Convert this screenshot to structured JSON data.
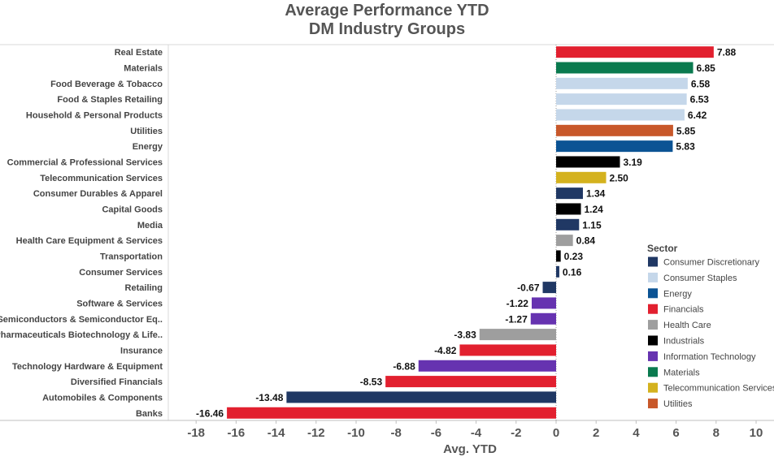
{
  "chart_data": {
    "type": "bar",
    "orientation": "horizontal",
    "title": "Average Performance YTD",
    "subtitle": "DM Industry Groups",
    "xlabel": "Avg. YTD",
    "ylabel": "",
    "xlim": [
      -19,
      10.5
    ],
    "x_ticks": [
      -18,
      -16,
      -14,
      -12,
      -10,
      -8,
      -6,
      -4,
      -2,
      0,
      2,
      4,
      6,
      8,
      10
    ],
    "grid": false,
    "legend": {
      "title": "Sector",
      "position": "right",
      "entries": [
        {
          "name": "Consumer Discretionary",
          "color": "#203864"
        },
        {
          "name": "Consumer Staples",
          "color": "#c5d7ea"
        },
        {
          "name": "Energy",
          "color": "#0b5394"
        },
        {
          "name": "Financials",
          "color": "#e2202f"
        },
        {
          "name": "Health Care",
          "color": "#9e9e9e"
        },
        {
          "name": "Industrials",
          "color": "#000000"
        },
        {
          "name": "Information Technology",
          "color": "#6633b0"
        },
        {
          "name": "Materials",
          "color": "#0a7a4f"
        },
        {
          "name": "Telecommunication Services",
          "color": "#d4b21e"
        },
        {
          "name": "Utilities",
          "color": "#c8582a"
        }
      ]
    },
    "bars": [
      {
        "category": "Real Estate",
        "value": 7.88,
        "label": "7.88",
        "sector": "Financials"
      },
      {
        "category": "Materials",
        "value": 6.85,
        "label": "6.85",
        "sector": "Materials"
      },
      {
        "category": "Food Beverage & Tobacco",
        "value": 6.58,
        "label": "6.58",
        "sector": "Consumer Staples"
      },
      {
        "category": "Food & Staples Retailing",
        "value": 6.53,
        "label": "6.53",
        "sector": "Consumer Staples"
      },
      {
        "category": "Household & Personal Products",
        "value": 6.42,
        "label": "6.42",
        "sector": "Consumer Staples"
      },
      {
        "category": "Utilities",
        "value": 5.85,
        "label": "5.85",
        "sector": "Utilities"
      },
      {
        "category": "Energy",
        "value": 5.83,
        "label": "5.83",
        "sector": "Energy"
      },
      {
        "category": "Commercial & Professional Services",
        "value": 3.19,
        "label": "3.19",
        "sector": "Industrials"
      },
      {
        "category": "Telecommunication Services",
        "value": 2.5,
        "label": "2.50",
        "sector": "Telecommunication Services"
      },
      {
        "category": "Consumer Durables & Apparel",
        "value": 1.34,
        "label": "1.34",
        "sector": "Consumer Discretionary"
      },
      {
        "category": "Capital Goods",
        "value": 1.24,
        "label": "1.24",
        "sector": "Industrials"
      },
      {
        "category": "Media",
        "value": 1.15,
        "label": "1.15",
        "sector": "Consumer Discretionary"
      },
      {
        "category": "Health Care Equipment & Services",
        "value": 0.84,
        "label": "0.84",
        "sector": "Health Care"
      },
      {
        "category": "Transportation",
        "value": 0.23,
        "label": "0.23",
        "sector": "Industrials"
      },
      {
        "category": "Consumer Services",
        "value": 0.16,
        "label": "0.16",
        "sector": "Consumer Discretionary"
      },
      {
        "category": "Retailing",
        "value": -0.67,
        "label": "-0.67",
        "sector": "Consumer Discretionary"
      },
      {
        "category": "Software & Services",
        "value": -1.22,
        "label": "-1.22",
        "sector": "Information Technology"
      },
      {
        "category": "Semiconductors & Semiconductor Eq..",
        "value": -1.27,
        "label": "-1.27",
        "sector": "Information Technology"
      },
      {
        "category": "Pharmaceuticals Biotechnology & Life..",
        "value": -3.83,
        "label": "-3.83",
        "sector": "Health Care"
      },
      {
        "category": "Insurance",
        "value": -4.82,
        "label": "-4.82",
        "sector": "Financials"
      },
      {
        "category": "Technology Hardware & Equipment",
        "value": -6.88,
        "label": "-6.88",
        "sector": "Information Technology"
      },
      {
        "category": "Diversified Financials",
        "value": -8.53,
        "label": "-8.53",
        "sector": "Financials"
      },
      {
        "category": "Automobiles & Components",
        "value": -13.48,
        "label": "-13.48",
        "sector": "Consumer Discretionary"
      },
      {
        "category": "Banks",
        "value": -16.46,
        "label": "-16.46",
        "sector": "Financials"
      }
    ]
  }
}
